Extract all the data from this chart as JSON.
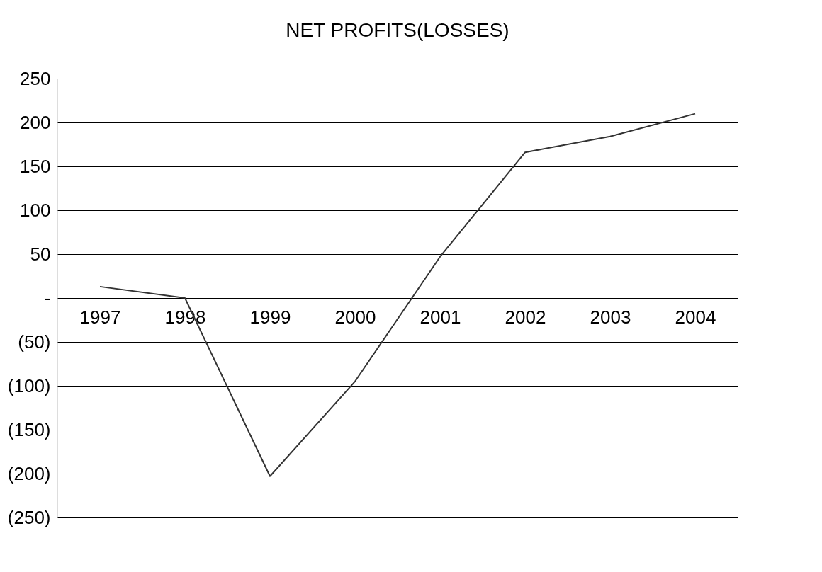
{
  "chart_data": {
    "type": "line",
    "title": "NET PROFITS(LOSSES)",
    "categories": [
      "1997",
      "1998",
      "1999",
      "2000",
      "2001",
      "2002",
      "2003",
      "2004"
    ],
    "series": [
      {
        "color": "#333333",
        "values": [
          13,
          0,
          -203,
          -95,
          47,
          166,
          184,
          210
        ]
      }
    ],
    "ylim": [
      -250,
      250
    ],
    "yticks": [
      {
        "value": -250,
        "label": "(250)"
      },
      {
        "value": -200,
        "label": "(200)"
      },
      {
        "value": -150,
        "label": "(150)"
      },
      {
        "value": -100,
        "label": "(100)"
      },
      {
        "value": -50,
        "label": "(50)"
      },
      {
        "value": 0,
        "label": "-"
      },
      50,
      100,
      150,
      200,
      250
    ],
    "grid": "y",
    "marker": "none",
    "line_style": "solid"
  }
}
